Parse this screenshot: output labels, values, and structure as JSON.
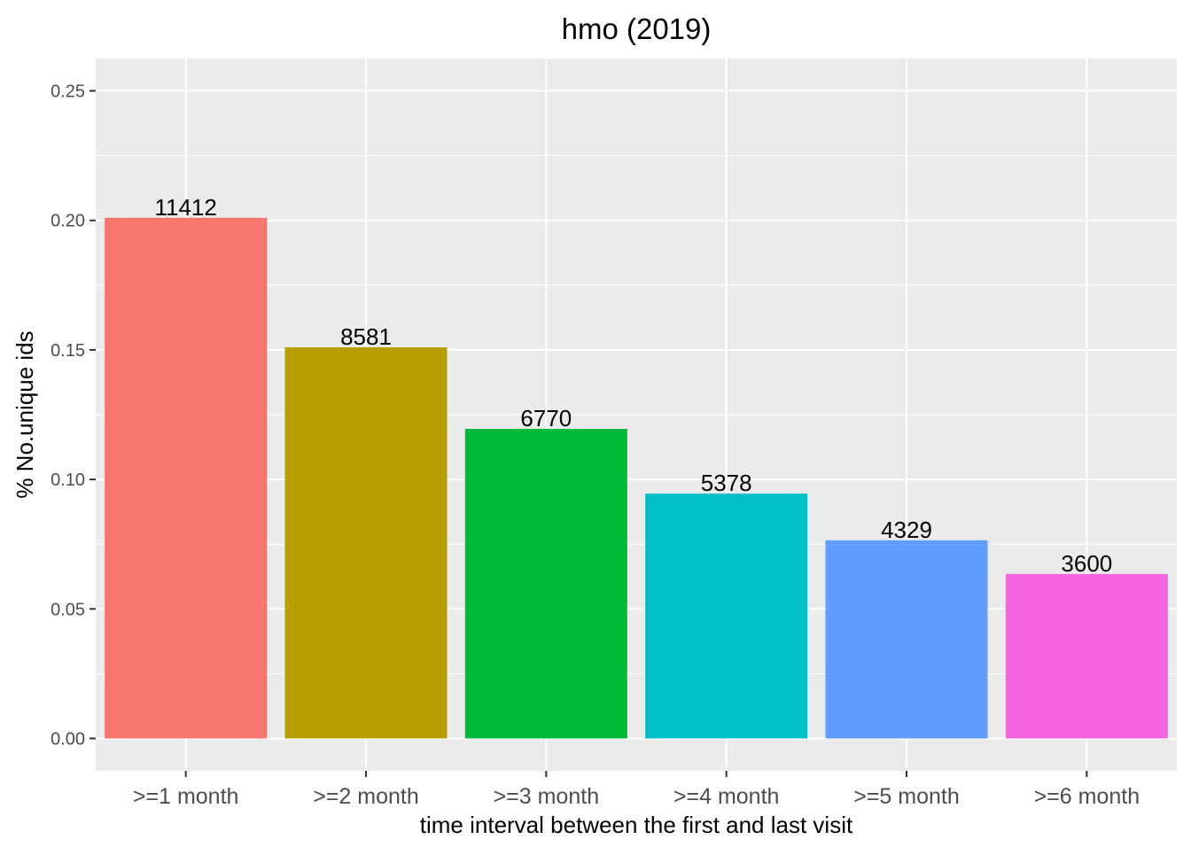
{
  "chart_data": {
    "type": "bar",
    "title": "hmo (2019)",
    "xlabel": "time interval between the first and last visit",
    "ylabel": "% No.unique ids",
    "categories": [
      ">=1 month",
      ">=2 month",
      ">=3 month",
      ">=4 month",
      ">=5 month",
      ">=6 month"
    ],
    "values": [
      0.201,
      0.151,
      0.1195,
      0.0945,
      0.0765,
      0.0635
    ],
    "labels": [
      "11412",
      "8581",
      "6770",
      "5378",
      "4329",
      "3600"
    ],
    "colors": [
      "#F8766D",
      "#B79F00",
      "#00BA38",
      "#00BFC4",
      "#619CFF",
      "#F564E3"
    ],
    "ylim": [
      -0.0125,
      0.2625
    ],
    "yticks": [
      0.0,
      0.05,
      0.1,
      0.15,
      0.2,
      0.25
    ],
    "ytick_labels": [
      "0.00",
      "0.05",
      "0.10",
      "0.15",
      "0.20",
      "0.25"
    ],
    "grid": true,
    "legend": "none",
    "panel_color": "#EBEBEB"
  }
}
